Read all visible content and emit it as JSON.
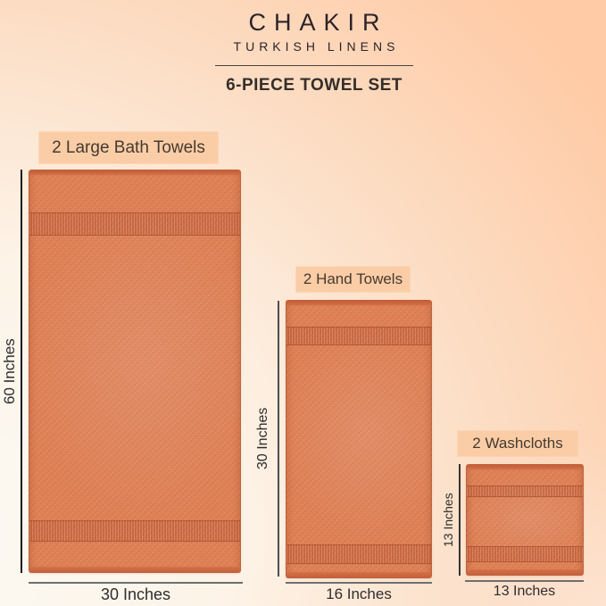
{
  "header": {
    "brand": "CHAKIR",
    "brand_subtitle": "TURKISH LINENS",
    "set_title": "6-PIECE TOWEL SET"
  },
  "items": [
    {
      "name": "large-bath-towels",
      "label": "2 Large Bath Towels",
      "height_label": "60 Inches",
      "width_label": "30 Inches"
    },
    {
      "name": "hand-towels",
      "label": "2 Hand Towels",
      "height_label": "30 Inches",
      "width_label": "16 Inches"
    },
    {
      "name": "washcloths",
      "label": "2 Washcloths",
      "height_label": "13 Inches",
      "width_label": "13 Inches"
    }
  ],
  "colors": {
    "towel": "#e08156",
    "towel_band": "#d4714a",
    "towel_edge": "#c2603c",
    "label_background": "#fbcda7",
    "background_peach": "#ffcba6",
    "background_cream": "#fbfaf4",
    "dimension_line_dark": "#1b1b1b",
    "dimension_line_gray": "#6f6f6f",
    "text": "#2c2327"
  }
}
